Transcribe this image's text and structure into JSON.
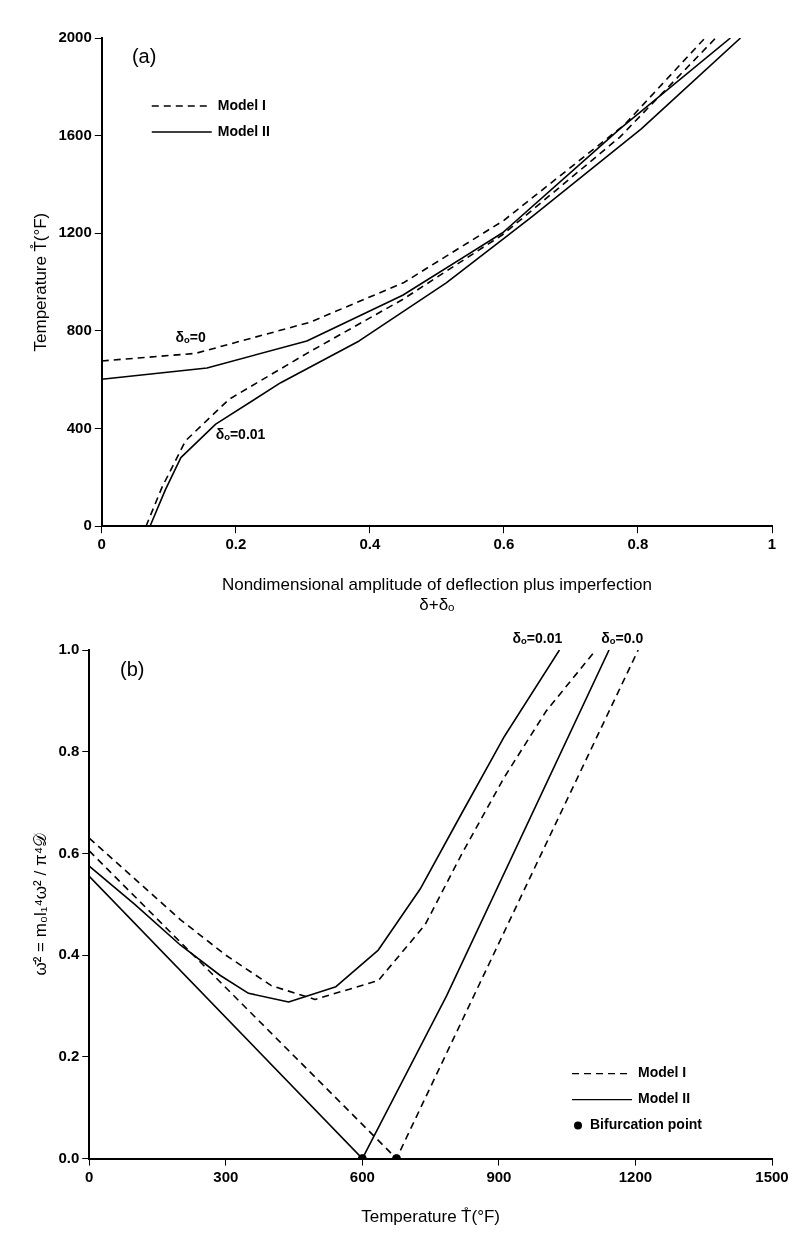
{
  "chart_data": [
    {
      "type": "line",
      "xlabel": "Nondimensional amplitude of deflection plus imperfection\nδ+δₒ",
      "ylabel": "Temperature T̊(°F)",
      "xlim": [
        0,
        1
      ],
      "ylim": [
        0,
        2000
      ],
      "xticks": [
        0,
        0.2,
        0.4,
        0.6,
        0.8,
        1
      ],
      "yticks": [
        0,
        400,
        800,
        1200,
        1600,
        2000
      ],
      "grid": false,
      "legend": "top left",
      "marker": "none",
      "annotations": [
        "(a)",
        "δₒ=0",
        "δₒ=0.01"
      ],
      "series": [
        {
          "name": "Model I",
          "color": "#000000",
          "line_style": "dashed",
          "x": [
            0,
            0.14,
            0.31,
            0.45,
            0.6,
            0.78,
            0.9
          ],
          "values": [
            677,
            708,
            835,
            997,
            1253,
            1645,
            2000
          ]
        },
        {
          "name": "Model II",
          "color": "#000000",
          "line_style": "solid",
          "x": [
            0,
            0.157,
            0.306,
            0.449,
            0.598,
            0.773,
            0.938
          ],
          "values": [
            602,
            648,
            759,
            946,
            1202,
            1628,
            2000
          ]
        },
        {
          "color": "#000000",
          "line_style": "dashed",
          "x": [
            0.066,
            0.09,
            0.125,
            0.19,
            0.306,
            0.449,
            0.598,
            0.773,
            0.916
          ],
          "values": [
            0,
            160,
            350,
            520,
            708,
            929,
            1194,
            1594,
            2000
          ]
        },
        {
          "color": "#000000",
          "line_style": "solid",
          "x": [
            0.072,
            0.095,
            0.118,
            0.17,
            0.267,
            0.384,
            0.514,
            0.643,
            0.805,
            0.953
          ],
          "values": [
            0,
            150,
            281,
            418,
            588,
            759,
            997,
            1270,
            1628,
            2000
          ]
        }
      ]
    },
    {
      "type": "line",
      "xlabel": "Temperature T̊(°F)",
      "ylabel": "ω̄² = m₀l₁⁴ω² / π⁴𝒟",
      "xlim": [
        0,
        1500
      ],
      "ylim": [
        0,
        1
      ],
      "xticks": [
        0,
        300,
        600,
        900,
        1200,
        1500
      ],
      "yticks": [
        {
          "value": 0,
          "label": "0.0"
        },
        0.2,
        0.4,
        0.6,
        0.8,
        {
          "value": 1,
          "label": "1.0"
        }
      ],
      "grid": false,
      "legend": "bottom right",
      "marker": "none",
      "annotations": [
        "(b)",
        "δₒ=0.01",
        "δₒ=0.0"
      ],
      "series": [
        {
          "name": "Model I",
          "color": "#000000",
          "line_style": "dashed",
          "x": [
            0,
            100,
            200,
            300,
            400,
            496,
            635,
            738,
            819,
            912,
            1004,
            1113
          ],
          "values": [
            0.63,
            0.55,
            0.47,
            0.4,
            0.34,
            0.313,
            0.35,
            0.46,
            0.6,
            0.75,
            0.88,
            1.0
          ]
        },
        {
          "name": "Model II",
          "color": "#000000",
          "line_style": "solid",
          "x": [
            0,
            100,
            200,
            288,
            350,
            438,
            542,
            635,
            727,
            819,
            912,
            1033
          ],
          "values": [
            0.575,
            0.5,
            0.42,
            0.36,
            0.325,
            0.308,
            0.338,
            0.41,
            0.53,
            0.68,
            0.83,
            1.0
          ]
        },
        {
          "color": "#000000",
          "line_style": "dashed",
          "x": [
            0,
            675,
            1206
          ],
          "values": [
            0.605,
            0,
            1.0
          ]
        },
        {
          "color": "#000000",
          "line_style": "solid",
          "x": [
            0,
            600,
            785,
            1142
          ],
          "values": [
            0.555,
            0,
            0.32,
            1.0
          ]
        },
        {
          "name": "Bifurcation point",
          "type": "scatter",
          "marker": "circle",
          "color": "#000000",
          "x": [
            600,
            675
          ],
          "values": [
            0,
            0
          ]
        }
      ]
    }
  ]
}
